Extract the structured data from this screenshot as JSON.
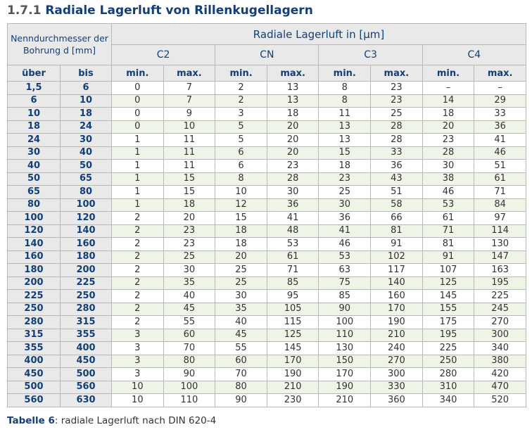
{
  "title": {
    "number": "1.7.1",
    "text": "Radiale Lagerluft von Rillenkugellagern"
  },
  "table": {
    "diameter_header": "Nenndurchmesser der Bohrung d [mm]",
    "clearance_header": "Radiale Lagerluft in [µm]",
    "groups": [
      "C2",
      "CN",
      "C3",
      "C4"
    ],
    "subheaders": [
      "über",
      "bis",
      "min.",
      "max.",
      "min.",
      "max.",
      "min.",
      "max.",
      "min.",
      "max."
    ],
    "rows": [
      [
        "1,5",
        "6",
        "0",
        "7",
        "2",
        "13",
        "8",
        "23",
        "–",
        "–"
      ],
      [
        "6",
        "10",
        "0",
        "7",
        "2",
        "13",
        "8",
        "23",
        "14",
        "29"
      ],
      [
        "10",
        "18",
        "0",
        "9",
        "3",
        "18",
        "11",
        "25",
        "18",
        "33"
      ],
      [
        "18",
        "24",
        "0",
        "10",
        "5",
        "20",
        "13",
        "28",
        "20",
        "36"
      ],
      [
        "24",
        "30",
        "1",
        "11",
        "5",
        "20",
        "13",
        "28",
        "23",
        "41"
      ],
      [
        "30",
        "40",
        "1",
        "11",
        "6",
        "20",
        "15",
        "33",
        "28",
        "46"
      ],
      [
        "40",
        "50",
        "1",
        "11",
        "6",
        "23",
        "18",
        "36",
        "30",
        "51"
      ],
      [
        "50",
        "65",
        "1",
        "15",
        "8",
        "28",
        "23",
        "43",
        "38",
        "61"
      ],
      [
        "65",
        "80",
        "1",
        "15",
        "10",
        "30",
        "25",
        "51",
        "46",
        "71"
      ],
      [
        "80",
        "100",
        "1",
        "18",
        "12",
        "36",
        "30",
        "58",
        "53",
        "84"
      ],
      [
        "100",
        "120",
        "2",
        "20",
        "15",
        "41",
        "36",
        "66",
        "61",
        "97"
      ],
      [
        "120",
        "140",
        "2",
        "23",
        "18",
        "48",
        "41",
        "81",
        "71",
        "114"
      ],
      [
        "140",
        "160",
        "2",
        "23",
        "18",
        "53",
        "46",
        "91",
        "81",
        "130"
      ],
      [
        "160",
        "180",
        "2",
        "25",
        "20",
        "61",
        "53",
        "102",
        "91",
        "147"
      ],
      [
        "180",
        "200",
        "2",
        "30",
        "25",
        "71",
        "63",
        "117",
        "107",
        "163"
      ],
      [
        "200",
        "225",
        "2",
        "35",
        "25",
        "85",
        "75",
        "140",
        "125",
        "195"
      ],
      [
        "225",
        "250",
        "2",
        "40",
        "30",
        "95",
        "85",
        "160",
        "145",
        "225"
      ],
      [
        "250",
        "280",
        "2",
        "45",
        "35",
        "105",
        "90",
        "170",
        "155",
        "245"
      ],
      [
        "280",
        "315",
        "2",
        "55",
        "40",
        "115",
        "100",
        "190",
        "175",
        "270"
      ],
      [
        "315",
        "355",
        "3",
        "60",
        "45",
        "125",
        "110",
        "210",
        "195",
        "300"
      ],
      [
        "355",
        "400",
        "3",
        "70",
        "55",
        "145",
        "130",
        "240",
        "225",
        "340"
      ],
      [
        "400",
        "450",
        "3",
        "80",
        "60",
        "170",
        "150",
        "270",
        "250",
        "380"
      ],
      [
        "450",
        "500",
        "3",
        "90",
        "70",
        "190",
        "170",
        "300",
        "280",
        "420"
      ],
      [
        "500",
        "560",
        "10",
        "100",
        "80",
        "210",
        "190",
        "330",
        "310",
        "470"
      ],
      [
        "560",
        "630",
        "10",
        "110",
        "90",
        "230",
        "210",
        "360",
        "340",
        "520"
      ]
    ]
  },
  "caption": {
    "label": "Tabelle 6",
    "text": ": radiale Lagerluft nach DIN 620-4"
  }
}
